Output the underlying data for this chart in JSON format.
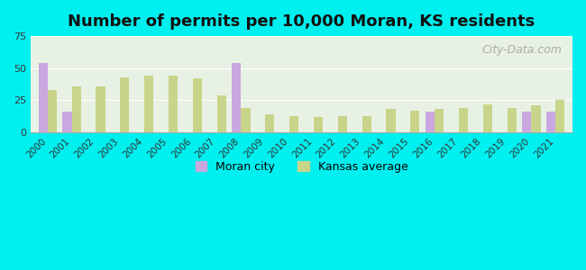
{
  "title": "Number of permits per 10,000 Moran, KS residents",
  "years": [
    2000,
    2001,
    2002,
    2003,
    2004,
    2005,
    2006,
    2007,
    2008,
    2009,
    2010,
    2011,
    2012,
    2013,
    2014,
    2015,
    2016,
    2017,
    2018,
    2019,
    2020,
    2021
  ],
  "moran_values": [
    54,
    16,
    0,
    0,
    0,
    0,
    0,
    0,
    54,
    0,
    0,
    0,
    0,
    0,
    0,
    0,
    16,
    0,
    0,
    0,
    16,
    16
  ],
  "kansas_values": [
    33,
    36,
    36,
    43,
    44,
    44,
    42,
    29,
    19,
    14,
    13,
    12,
    13,
    13,
    18,
    17,
    18,
    19,
    22,
    19,
    21,
    25
  ],
  "moran_color": "#c9a8e0",
  "kansas_color": "#c8d48a",
  "background_outer": "#00f0f0",
  "background_plot": "#e8f2e4",
  "ylim": [
    0,
    75
  ],
  "yticks": [
    0,
    25,
    50,
    75
  ],
  "title_fontsize": 13,
  "bar_width": 0.38,
  "legend_moran": "Moran city",
  "legend_kansas": "Kansas average"
}
